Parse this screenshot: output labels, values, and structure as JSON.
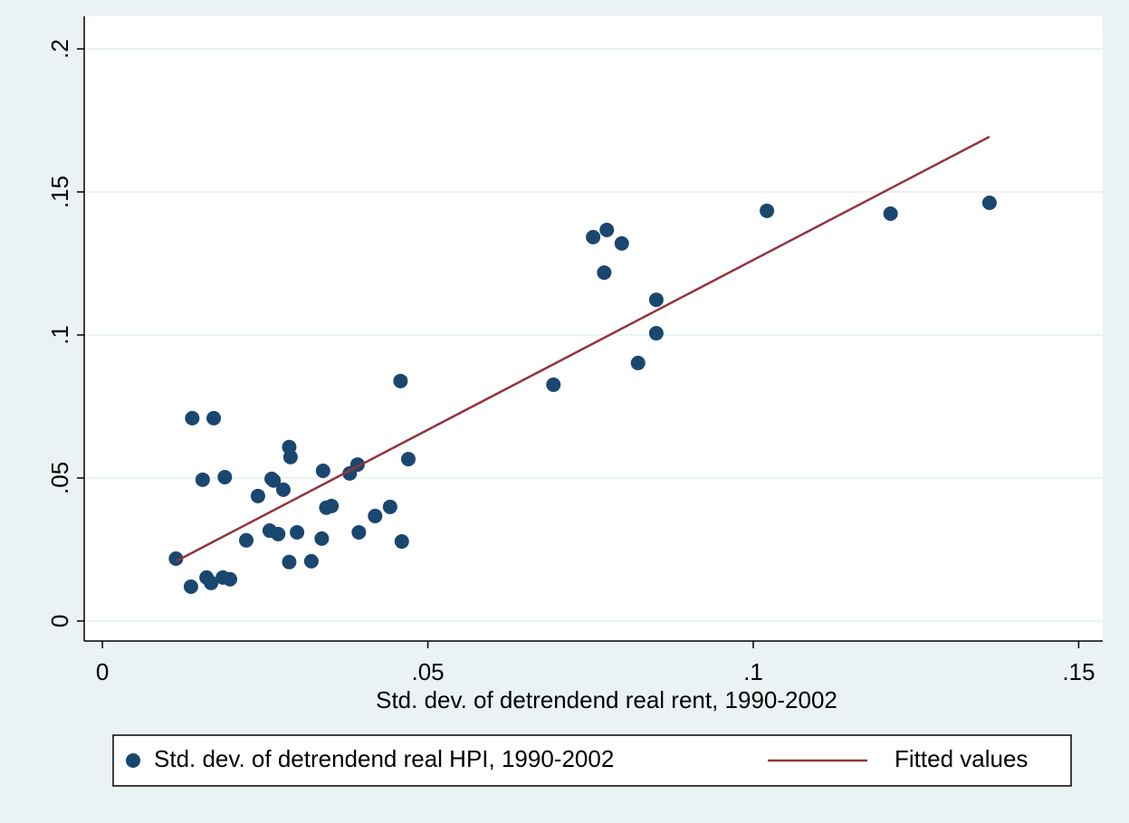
{
  "chart_data": {
    "type": "scatter",
    "x_label": "Std. dev. of detrendend real rent, 1990-2002",
    "xlim": [
      -0.0028,
      0.1537
    ],
    "ylim": [
      -0.007,
      0.2114
    ],
    "xticks": [
      0,
      {
        "value": 0.05,
        "label": ".05"
      },
      {
        "value": 0.1,
        "label": ".1"
      },
      {
        "value": 0.15,
        "label": ".15"
      }
    ],
    "yticks": [
      0,
      {
        "value": 0.05,
        "label": ".05"
      },
      {
        "value": 0.1,
        "label": ".1"
      },
      {
        "value": 0.15,
        "label": ".15"
      },
      {
        "value": 0.2,
        "label": ".2"
      }
    ],
    "grid": true,
    "legend": "bottom",
    "series": [
      {
        "name": "Std. dev. of detrendend real HPI, 1990-2002",
        "type": "scatter",
        "color": "#1a476f",
        "x": [
          0.0113,
          0.0136,
          0.0138,
          0.0154,
          0.016,
          0.0167,
          0.0171,
          0.0185,
          0.0188,
          0.0196,
          0.0221,
          0.0239,
          0.0257,
          0.026,
          0.0263,
          0.027,
          0.0278,
          0.0287,
          0.0287,
          0.0289,
          0.0299,
          0.0321,
          0.0337,
          0.0339,
          0.0344,
          0.0352,
          0.038,
          0.0392,
          0.0394,
          0.0419,
          0.0442,
          0.0458,
          0.046,
          0.047,
          0.0693,
          0.0754,
          0.0771,
          0.0775,
          0.0798,
          0.0823,
          0.0851,
          0.0851,
          0.1021,
          0.1211,
          0.1363
        ],
        "values": [
          0.0218,
          0.012,
          0.0709,
          0.0494,
          0.0152,
          0.0133,
          0.0709,
          0.0152,
          0.0503,
          0.0146,
          0.0282,
          0.0437,
          0.0316,
          0.0497,
          0.0491,
          0.0304,
          0.0459,
          0.0608,
          0.0206,
          0.0573,
          0.031,
          0.0209,
          0.0288,
          0.0525,
          0.0396,
          0.0402,
          0.0516,
          0.0547,
          0.031,
          0.0367,
          0.0399,
          0.0839,
          0.0278,
          0.0566,
          0.0826,
          0.1342,
          0.1218,
          0.1367,
          0.132,
          0.0902,
          0.1123,
          0.1006,
          0.1434,
          0.1424,
          0.1462
        ]
      },
      {
        "name": "Fitted values",
        "type": "line",
        "color": "#90353b",
        "x": [
          0.0113,
          0.1363
        ],
        "values": [
          0.0209,
          0.1693
        ]
      }
    ]
  }
}
